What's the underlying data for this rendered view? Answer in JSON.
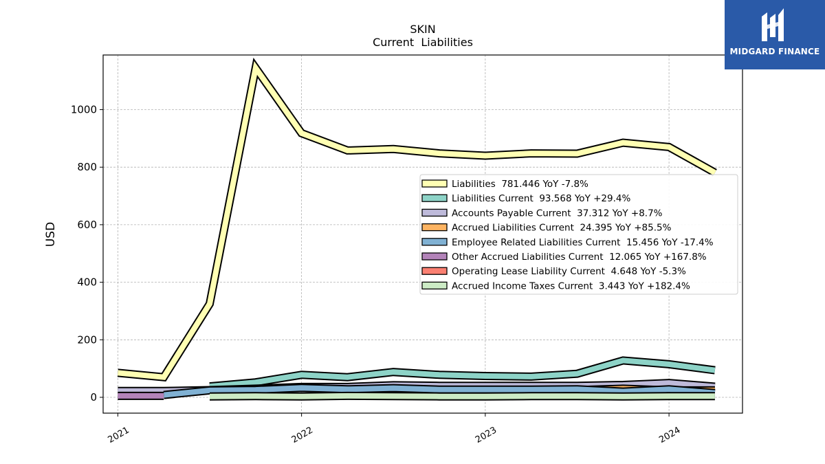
{
  "chart_data": {
    "type": "area",
    "title": "SKIN",
    "subtitle": "Current  Liabilities",
    "xlabel": "",
    "ylabel": "USD",
    "xlim": [
      2020.92,
      2024.4
    ],
    "ylim": [
      -55,
      1190
    ],
    "x_ticks": [
      {
        "label": "2021",
        "value": 2021.0
      },
      {
        "label": "2022",
        "value": 2022.0
      },
      {
        "label": "2023",
        "value": 2023.0
      },
      {
        "label": "2024",
        "value": 2024.0
      }
    ],
    "y_ticks": [
      0,
      200,
      400,
      600,
      800,
      1000
    ],
    "grid": true,
    "legend_position": "right",
    "x": [
      2021.0,
      2021.25,
      2021.5,
      2021.75,
      2022.0,
      2022.25,
      2022.5,
      2022.75,
      2023.0,
      2023.25,
      2023.5,
      2023.75,
      2024.0,
      2024.25
    ],
    "series": [
      {
        "name": "Liabilities  781.446 YoY -7.8%",
        "color": "#ffffb3",
        "values": [
          85,
          70,
          325,
          1145,
          918,
          858,
          863,
          848,
          840,
          848,
          847,
          885,
          870,
          781
        ]
      },
      {
        "name": "Liabilities Current  93.568 YoY +29.4%",
        "color": "#8dd3c7",
        "values": [
          null,
          null,
          38,
          52,
          78,
          70,
          88,
          78,
          74,
          72,
          82,
          128,
          115,
          94
        ]
      },
      {
        "name": "Accounts Payable Current  37.312 YoY +8.7%",
        "color": "#bebada",
        "values": [
          22,
          22,
          25,
          30,
          36,
          36,
          42,
          40,
          40,
          40,
          40,
          43,
          50,
          37
        ]
      },
      {
        "name": "Accrued Liabilities Current  24.395 YoY +85.5%",
        "color": "#fdb462",
        "values": [
          null,
          null,
          null,
          null,
          null,
          null,
          null,
          null,
          null,
          null,
          25,
          30,
          24,
          24
        ]
      },
      {
        "name": "Employee Related Liabilities Current  15.456 YoY -17.4%",
        "color": "#80b1d3",
        "values": [
          null,
          8,
          24,
          26,
          33,
          28,
          32,
          27,
          27,
          27,
          28,
          20,
          28,
          15
        ]
      },
      {
        "name": "Other Accrued Liabilities Current  12.065 YoY +167.8%",
        "color": "#b383b9",
        "values": [
          5,
          5,
          null,
          null,
          null,
          null,
          null,
          null,
          null,
          null,
          null,
          null,
          null,
          null
        ]
      },
      {
        "name": "Operating Lease Liability Current  4.648 YoY -5.3%",
        "color": "#fb8072",
        "values": [
          null,
          null,
          null,
          null,
          null,
          null,
          null,
          null,
          null,
          null,
          null,
          null,
          null,
          null
        ]
      },
      {
        "name": "Accrued Income Taxes Current  3.443 YoY +182.4%",
        "color": "#ccebc5",
        "values": [
          null,
          null,
          3,
          4,
          3,
          5,
          4,
          3,
          3,
          4,
          4,
          3,
          4,
          4
        ]
      }
    ]
  },
  "branding": {
    "logo_text": "MIDGARD FINANCE"
  }
}
